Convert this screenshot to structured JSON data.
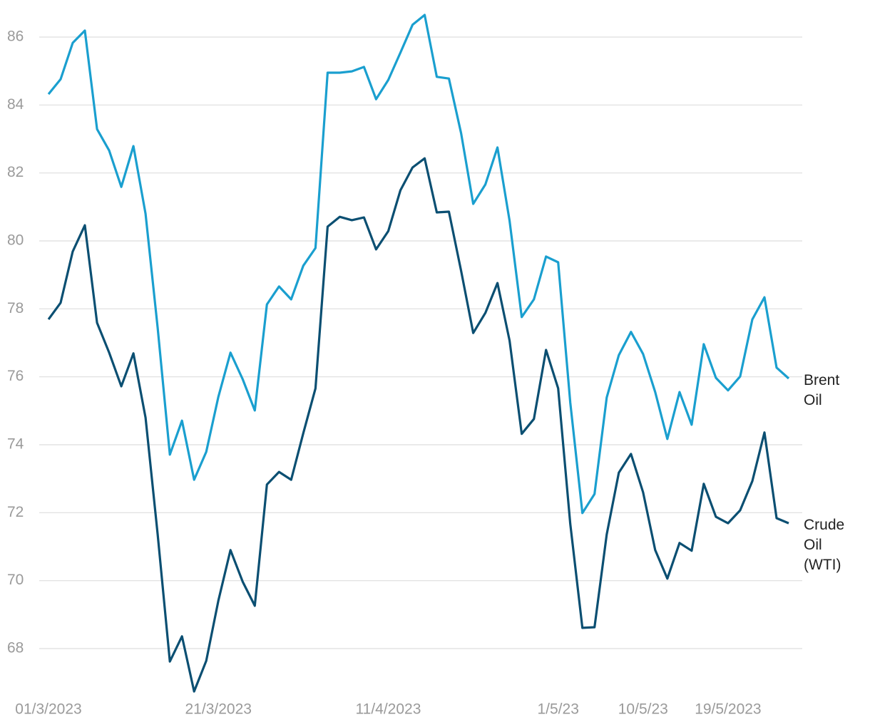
{
  "chart_data": {
    "type": "line",
    "categories": [
      "01/3/2023",
      null,
      null,
      null,
      null,
      null,
      null,
      null,
      null,
      null,
      null,
      null,
      null,
      null,
      "21/3/2023",
      null,
      null,
      null,
      null,
      null,
      null,
      null,
      null,
      null,
      null,
      null,
      null,
      null,
      "11/4/2023",
      null,
      null,
      null,
      null,
      null,
      null,
      null,
      null,
      null,
      null,
      null,
      null,
      null,
      "1/5/23",
      null,
      null,
      null,
      null,
      null,
      null,
      "10/5/23",
      null,
      null,
      null,
      null,
      null,
      null,
      "19/5/2023",
      null,
      null,
      null,
      null,
      null
    ],
    "series": [
      {
        "name": "Brent Oil",
        "color": "#1a9fcf",
        "values": [
          84.32,
          84.76,
          85.83,
          86.19,
          83.29,
          82.66,
          81.59,
          82.79,
          80.8,
          77.44,
          73.71,
          74.71,
          72.97,
          73.79,
          75.41,
          76.71,
          75.93,
          75.01,
          78.13,
          78.66,
          78.28,
          79.27,
          79.79,
          84.95,
          84.95,
          84.99,
          85.12,
          84.17,
          84.74,
          85.54,
          86.36,
          86.65,
          84.83,
          84.78,
          83.17,
          81.09,
          81.66,
          82.75,
          80.59,
          77.76,
          78.28,
          79.54,
          79.37,
          75.24,
          71.99,
          72.55,
          75.39,
          76.64,
          77.32,
          76.67,
          75.55,
          74.17,
          75.55,
          74.59,
          76.96,
          75.97,
          75.6,
          76.01,
          77.69,
          78.34,
          76.27,
          75.95
        ]
      },
      {
        "name": "Crude Oil (WTI)",
        "color": "#0b4f72",
        "values": [
          77.69,
          78.18,
          79.69,
          80.46,
          77.59,
          76.71,
          75.72,
          76.69,
          74.8,
          71.36,
          67.62,
          68.36,
          66.74,
          67.64,
          69.41,
          70.9,
          69.97,
          69.26,
          72.83,
          73.2,
          72.97,
          74.34,
          75.66,
          80.42,
          80.71,
          80.61,
          80.69,
          79.75,
          80.29,
          81.49,
          82.16,
          82.43,
          80.84,
          80.86,
          79.12,
          77.29,
          77.88,
          78.76,
          77.06,
          74.32,
          74.76,
          76.79,
          75.66,
          71.67,
          68.61,
          68.63,
          71.36,
          73.18,
          73.73,
          72.6,
          70.9,
          70.06,
          71.11,
          70.88,
          72.85,
          71.88,
          71.69,
          72.07,
          72.93,
          74.36,
          71.84,
          71.69
        ]
      }
    ],
    "ylim": [
      66.6,
      86.7
    ],
    "yticks": [
      68,
      70,
      72,
      74,
      76,
      78,
      80,
      82,
      84,
      86
    ],
    "grid": true
  }
}
